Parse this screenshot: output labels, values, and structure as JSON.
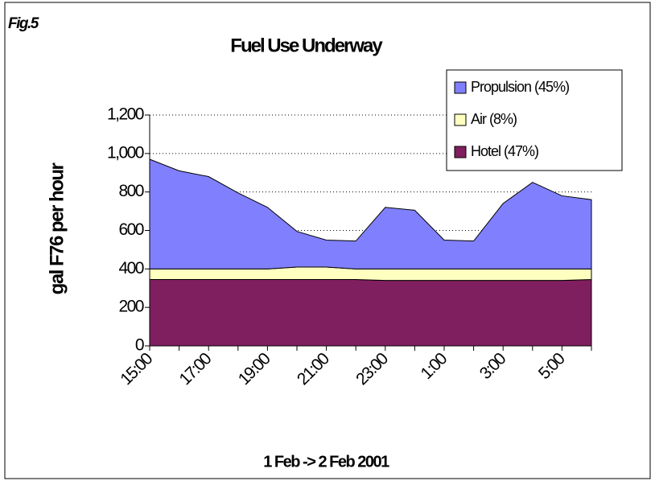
{
  "chart_data": {
    "type": "stacked_area",
    "figure_label": "Fig.5",
    "title": "Fuel Use Underway",
    "y_axis_label": "gal F76 per hour",
    "x_axis_label": "1 Feb -> 2 Feb 2001",
    "categories": [
      "15:00",
      null,
      "17:00",
      null,
      "19:00",
      null,
      "21:00",
      null,
      "23:00",
      null,
      "1:00",
      null,
      "3:00",
      null,
      "5:00",
      null
    ],
    "series": [
      {
        "name": "Propulsion (45%)",
        "color": "#8080ff",
        "values": [
          570,
          510,
          480,
          395,
          320,
          185,
          140,
          145,
          320,
          305,
          150,
          145,
          340,
          450,
          380,
          360
        ]
      },
      {
        "name": "Air (8%)",
        "color": "#ffffc0",
        "values": [
          55,
          55,
          55,
          55,
          55,
          65,
          65,
          55,
          60,
          60,
          60,
          60,
          60,
          60,
          60,
          55
        ]
      },
      {
        "name": "Hotel (47%)",
        "color": "#7f1f5f",
        "values": [
          345,
          345,
          345,
          345,
          345,
          345,
          345,
          345,
          340,
          340,
          340,
          340,
          340,
          340,
          340,
          345
        ]
      }
    ],
    "ylim": [
      0,
      1200
    ],
    "yticks": [
      0,
      200,
      400,
      600,
      800,
      {
        "value": 1000,
        "label": "1,000"
      },
      {
        "value": 1200,
        "label": "1,200"
      }
    ],
    "grid": true,
    "legend": "top-right"
  }
}
